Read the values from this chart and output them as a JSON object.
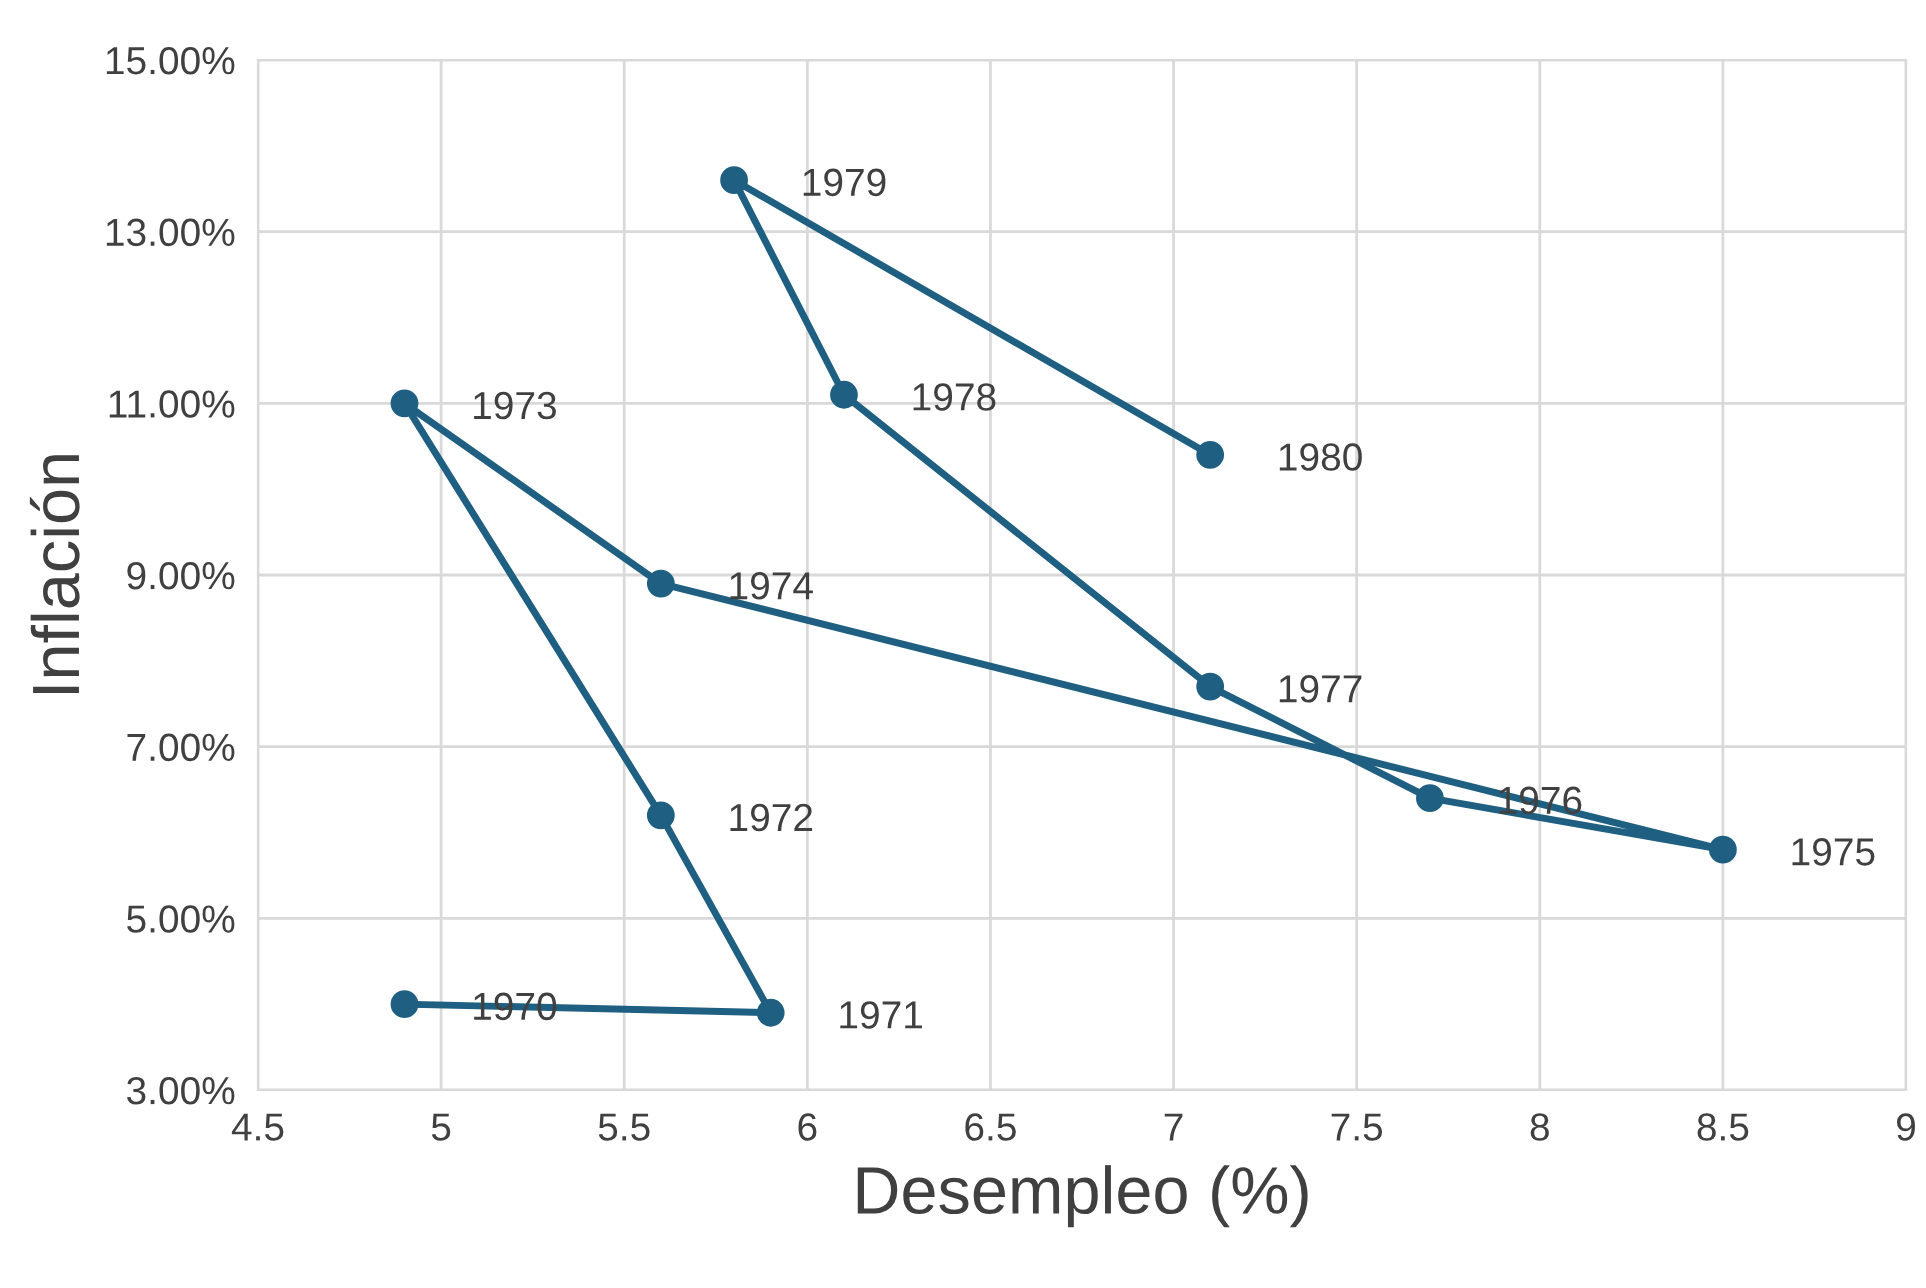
{
  "chart_data": {
    "type": "line",
    "xlabel": "Desempleo (%)",
    "ylabel": "Inflación",
    "series": [
      {
        "color": "#1f5f82",
        "x": [
          4.9,
          5.9,
          5.6,
          4.9,
          5.6,
          8.5,
          7.7,
          7.1,
          6.1,
          5.8,
          7.1
        ],
        "values": [
          4.0,
          3.9,
          6.2,
          11.0,
          8.9,
          5.8,
          6.4,
          7.7,
          11.1,
          13.6,
          10.4
        ]
      }
    ],
    "annotations": [
      {
        "text": "1970",
        "x": 4.9,
        "y": 4.0
      },
      {
        "text": "1971",
        "x": 5.9,
        "y": 3.9
      },
      {
        "text": "1972",
        "x": 5.6,
        "y": 6.2
      },
      {
        "text": "1973",
        "x": 4.9,
        "y": 11.0
      },
      {
        "text": "1974",
        "x": 5.6,
        "y": 8.9
      },
      {
        "text": "1975",
        "x": 8.5,
        "y": 5.8
      },
      {
        "text": "1976",
        "x": 7.7,
        "y": 6.4
      },
      {
        "text": "1977",
        "x": 7.1,
        "y": 7.7
      },
      {
        "text": "1978",
        "x": 6.1,
        "y": 11.1
      },
      {
        "text": "1979",
        "x": 5.8,
        "y": 13.6
      },
      {
        "text": "1980",
        "x": 7.1,
        "y": 10.4
      }
    ],
    "xlim": [
      4.5,
      9
    ],
    "xticks": [
      4.5,
      5,
      5.5,
      6,
      6.5,
      7,
      7.5,
      8,
      8.5,
      9
    ],
    "ylim": [
      3,
      15
    ],
    "yticks": [
      {
        "value": 3,
        "label": "3.00%"
      },
      {
        "value": 5,
        "label": "5.00%"
      },
      {
        "value": 7,
        "label": "7.00%"
      },
      {
        "value": 9,
        "label": "9.00%"
      },
      {
        "value": 11,
        "label": "11.00%"
      },
      {
        "value": 13,
        "label": "13.00%"
      },
      {
        "value": 15,
        "label": "15.00%"
      }
    ],
    "grid": true,
    "marker": "circle",
    "line_style": "solid"
  }
}
